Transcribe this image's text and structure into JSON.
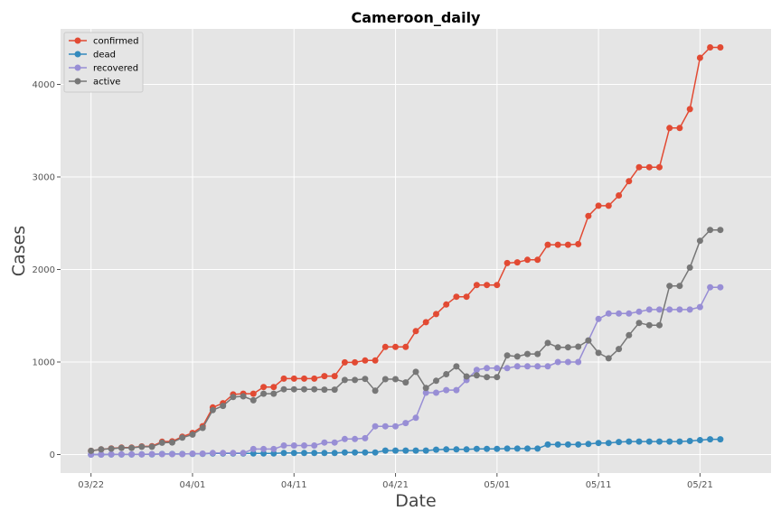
{
  "chart_data": {
    "type": "line",
    "title": "Cameroon_daily",
    "xlabel": "Date",
    "ylabel": "Cases",
    "x_start": "2020-03-22",
    "x_tick_labels": [
      "03/22",
      "04/01",
      "04/11",
      "04/21",
      "05/01",
      "05/11",
      "05/21"
    ],
    "y_ticks": [
      0,
      1000,
      2000,
      3000,
      4000
    ],
    "xlim": [
      "2020-03-19",
      "2020-05-28"
    ],
    "ylim": [
      -200,
      4600
    ],
    "grid": true,
    "legend_position": "top-left",
    "series": [
      {
        "name": "confirmed",
        "color": "#e24a33",
        "values": [
          40,
          56,
          66,
          75,
          75,
          88,
          91,
          139,
          142,
          193,
          233,
          306,
          509,
          555,
          650,
          658,
          658,
          730,
          730,
          820,
          820,
          820,
          820,
          848,
          848,
          996,
          996,
          1017,
          1017,
          1163,
          1163,
          1163,
          1334,
          1430,
          1518,
          1621,
          1705,
          1705,
          1832,
          1832,
          1832,
          2069,
          2077,
          2104,
          2104,
          2267,
          2267,
          2267,
          2274,
          2579,
          2689,
          2689,
          2800,
          2954,
          3105,
          3105,
          3105,
          3529,
          3529,
          3733,
          4288,
          4400,
          4400
        ]
      },
      {
        "name": "dead",
        "color": "#348abd",
        "values": [
          0,
          0,
          1,
          1,
          1,
          2,
          2,
          6,
          6,
          6,
          7,
          8,
          12,
          12,
          12,
          12,
          12,
          12,
          12,
          17,
          17,
          17,
          17,
          17,
          17,
          22,
          22,
          22,
          22,
          43,
          43,
          43,
          43,
          43,
          53,
          56,
          56,
          56,
          61,
          61,
          61,
          64,
          64,
          64,
          64,
          108,
          108,
          108,
          108,
          114,
          125,
          125,
          136,
          140,
          140,
          140,
          140,
          140,
          140,
          146,
          156,
          165,
          165
        ]
      },
      {
        "name": "recovered",
        "color": "#988ed5",
        "values": [
          0,
          0,
          2,
          2,
          2,
          2,
          5,
          5,
          5,
          5,
          10,
          10,
          17,
          17,
          17,
          17,
          60,
          60,
          60,
          98,
          98,
          98,
          98,
          130,
          130,
          168,
          168,
          177,
          305,
          305,
          305,
          340,
          397,
          668,
          668,
          697,
          697,
          805,
          915,
          934,
          934,
          934,
          953,
          953,
          953,
          953,
          1000,
          1000,
          1000,
          1232,
          1465,
          1524,
          1524,
          1524,
          1543,
          1567,
          1567,
          1567,
          1567,
          1567,
          1594,
          1808,
          1808
        ]
      },
      {
        "name": "active",
        "color": "#777777",
        "values": [
          40,
          56,
          63,
          72,
          72,
          84,
          84,
          128,
          131,
          182,
          216,
          288,
          480,
          526,
          621,
          629,
          586,
          658,
          658,
          705,
          705,
          705,
          705,
          701,
          701,
          806,
          806,
          818,
          690,
          815,
          815,
          780,
          894,
          719,
          797,
          868,
          952,
          844,
          856,
          837,
          837,
          1071,
          1060,
          1087,
          1087,
          1206,
          1159,
          1159,
          1166,
          1233,
          1099,
          1040,
          1140,
          1290,
          1422,
          1398,
          1398,
          1822,
          1822,
          2020,
          2310,
          2427,
          2427
        ]
      }
    ]
  }
}
